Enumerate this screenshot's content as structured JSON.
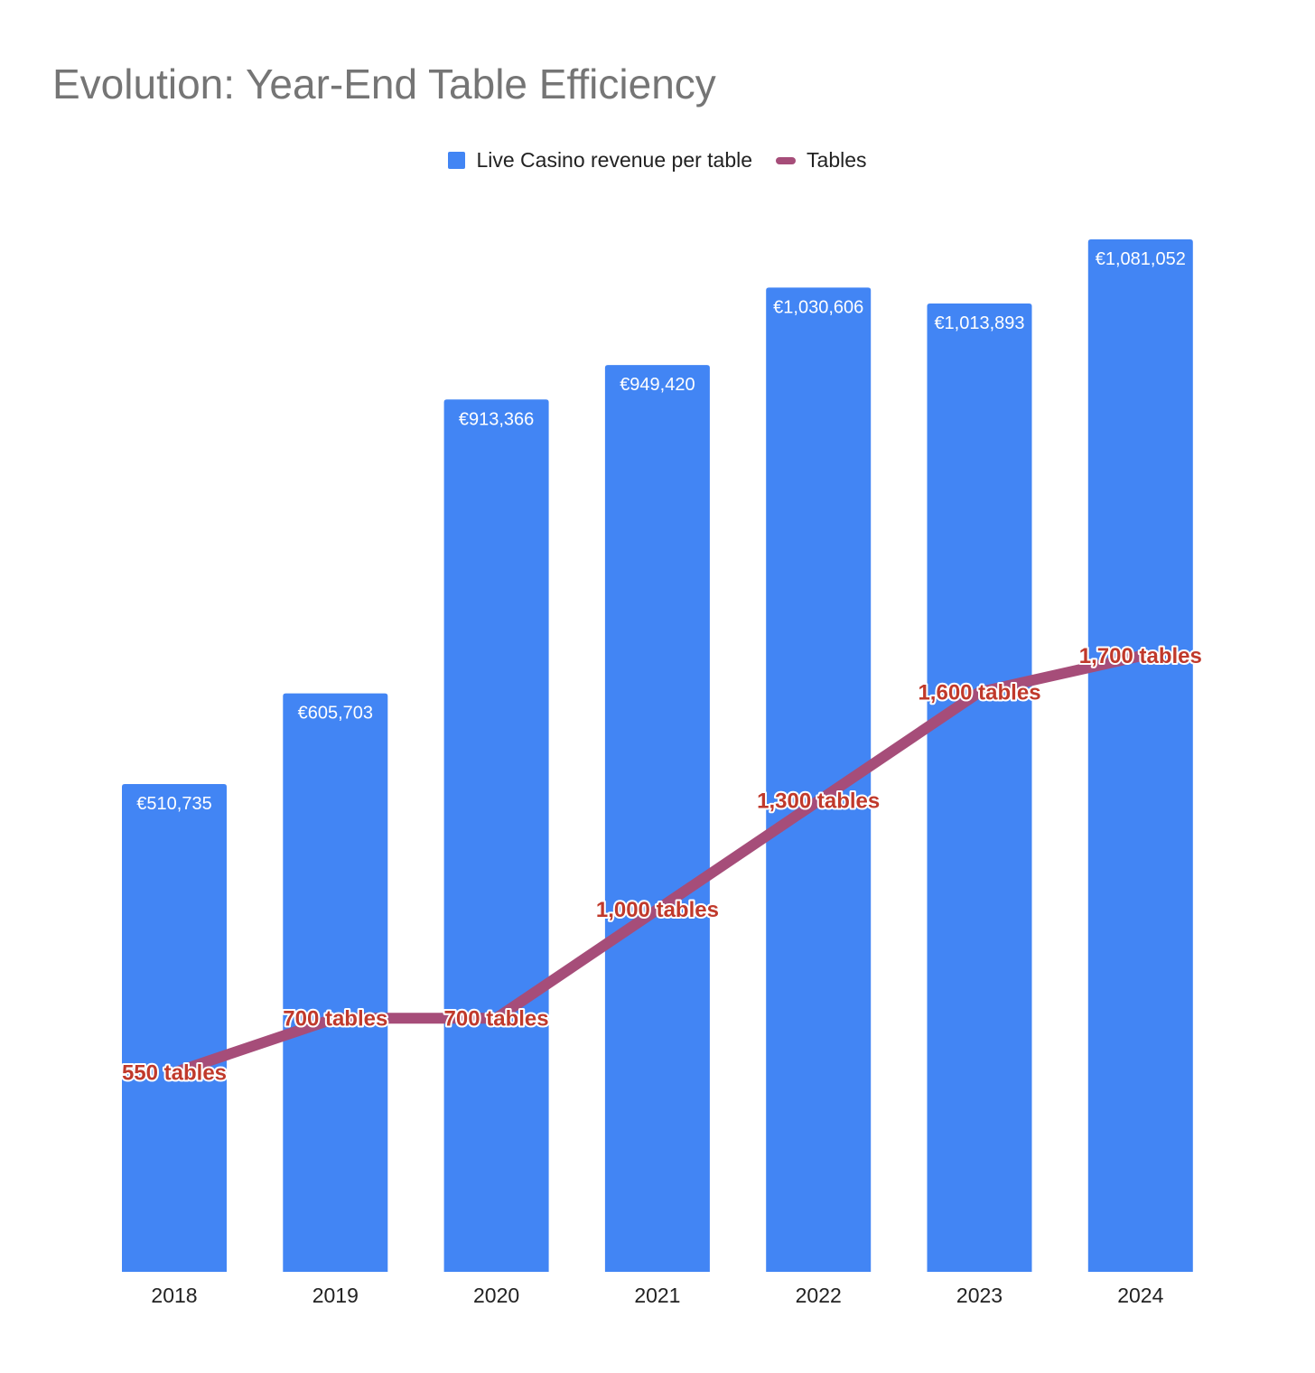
{
  "title": "Evolution: Year-End Table Efficiency",
  "colors": {
    "bar": "#4285f4",
    "line": "#a64d79",
    "line_label": "#c0392b",
    "bar_label": "#ffffff",
    "axis_text": "#222222",
    "title": "#757575"
  },
  "chart_data": {
    "type": "bar",
    "categories": [
      "2018",
      "2019",
      "2020",
      "2021",
      "2022",
      "2023",
      "2024"
    ],
    "series": [
      {
        "name": "Live Casino revenue per table",
        "type": "bar",
        "axis": "left",
        "values": [
          510735,
          605703,
          913366,
          949420,
          1030606,
          1013893,
          1081052
        ],
        "labels": [
          "€510,735",
          "€605,703",
          "€913,366",
          "€949,420",
          "€1,030,606",
          "€1,013,893",
          "€1,081,052"
        ]
      },
      {
        "name": "Tables",
        "type": "line",
        "axis": "right",
        "values": [
          550,
          700,
          700,
          1000,
          1300,
          1600,
          1700
        ],
        "labels": [
          "550 tables",
          "700 tables",
          "700 tables",
          "1,000 tables",
          "1,300 tables",
          "1,600 tables",
          "1,700 tables"
        ]
      }
    ],
    "ylim_left": [
      0,
      1081052
    ],
    "ylim_right": [
      0,
      2850
    ],
    "grid": false,
    "legend": "top-center"
  }
}
